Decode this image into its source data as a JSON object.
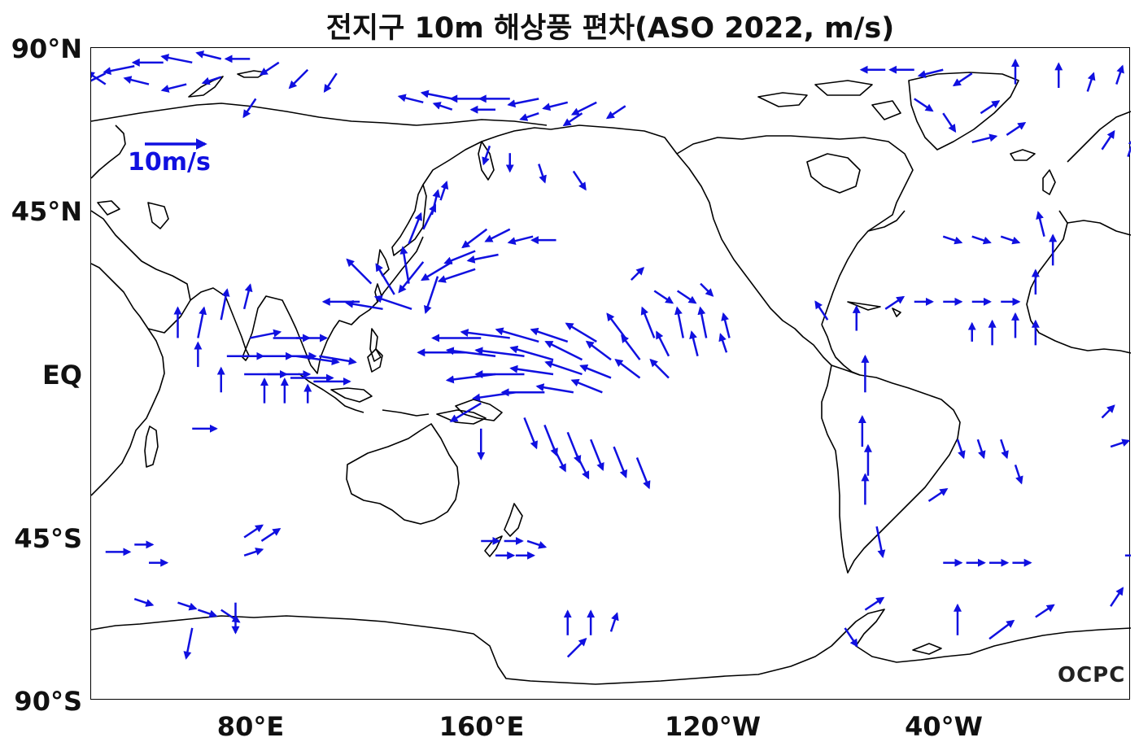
{
  "title": "전지구 10m 해상풍 편차(ASO 2022, m/s)",
  "y_axis": {
    "labels": [
      {
        "text": "90°N",
        "lat": 90
      },
      {
        "text": "45°N",
        "lat": 45
      },
      {
        "text": "EQ",
        "lat": 0
      },
      {
        "text": "45°S",
        "lat": -45
      },
      {
        "text": "90°S",
        "lat": -90
      }
    ]
  },
  "x_axis": {
    "labels": [
      {
        "text": "80°E",
        "lon": 80
      },
      {
        "text": "160°E",
        "lon": 160
      },
      {
        "text": "120°W",
        "lon": 240
      },
      {
        "text": "40°W",
        "lon": 320
      }
    ]
  },
  "map": {
    "lon_range": [
      25,
      385
    ],
    "lat_range": [
      -90,
      90
    ],
    "land_outline_color": "#000000",
    "vector_color": "#1010e0"
  },
  "reference_vector": {
    "label": "10m/s",
    "speed": 10
  },
  "logo": "OCPC",
  "wind_anomaly_vectors": [
    {
      "lon": 30,
      "lat": 83,
      "u": -4,
      "v": -2
    },
    {
      "lon": 40,
      "lat": 85,
      "u": -5,
      "v": -1
    },
    {
      "lon": 50,
      "lat": 86,
      "u": -5,
      "v": 0
    },
    {
      "lon": 60,
      "lat": 86,
      "u": -5,
      "v": 1
    },
    {
      "lon": 70,
      "lat": 87,
      "u": -4,
      "v": 1
    },
    {
      "lon": 80,
      "lat": 87,
      "u": -4,
      "v": 0
    },
    {
      "lon": 90,
      "lat": 86,
      "u": -3,
      "v": -2
    },
    {
      "lon": 100,
      "lat": 84,
      "u": -3,
      "v": -3
    },
    {
      "lon": 110,
      "lat": 83,
      "u": -2,
      "v": -3
    },
    {
      "lon": 30,
      "lat": 80,
      "u": -3,
      "v": 2
    },
    {
      "lon": 45,
      "lat": 80,
      "u": -4,
      "v": 1
    },
    {
      "lon": 58,
      "lat": 80,
      "u": -4,
      "v": -1
    },
    {
      "lon": 70,
      "lat": 82,
      "u": -3,
      "v": -1
    },
    {
      "lon": 82,
      "lat": 76,
      "u": -2,
      "v": -3
    },
    {
      "lon": 140,
      "lat": 75,
      "u": -4,
      "v": 1
    },
    {
      "lon": 150,
      "lat": 76,
      "u": -5,
      "v": 1
    },
    {
      "lon": 160,
      "lat": 76,
      "u": -5,
      "v": 0
    },
    {
      "lon": 170,
      "lat": 76,
      "u": -5,
      "v": 0
    },
    {
      "lon": 180,
      "lat": 76,
      "u": -5,
      "v": -1
    },
    {
      "lon": 190,
      "lat": 75,
      "u": -4,
      "v": -1
    },
    {
      "lon": 200,
      "lat": 75,
      "u": -4,
      "v": -2
    },
    {
      "lon": 210,
      "lat": 74,
      "u": -3,
      "v": -2
    },
    {
      "lon": 150,
      "lat": 73,
      "u": -3,
      "v": 1
    },
    {
      "lon": 165,
      "lat": 73,
      "u": -4,
      "v": 0
    },
    {
      "lon": 180,
      "lat": 72,
      "u": -3,
      "v": -1
    },
    {
      "lon": 195,
      "lat": 72,
      "u": -3,
      "v": -2
    },
    {
      "lon": 163,
      "lat": 63,
      "u": -1,
      "v": -3
    },
    {
      "lon": 170,
      "lat": 61,
      "u": 0,
      "v": -3
    },
    {
      "lon": 180,
      "lat": 58,
      "u": 1,
      "v": -3
    },
    {
      "lon": 192,
      "lat": 56,
      "u": 2,
      "v": -3
    },
    {
      "lon": 300,
      "lat": 84,
      "u": -4,
      "v": 0
    },
    {
      "lon": 310,
      "lat": 84,
      "u": -4,
      "v": 0
    },
    {
      "lon": 320,
      "lat": 84,
      "u": -4,
      "v": -1
    },
    {
      "lon": 330,
      "lat": 83,
      "u": -3,
      "v": -2
    },
    {
      "lon": 310,
      "lat": 76,
      "u": 3,
      "v": -2
    },
    {
      "lon": 320,
      "lat": 72,
      "u": 2,
      "v": -3
    },
    {
      "lon": 333,
      "lat": 72,
      "u": 3,
      "v": 2
    },
    {
      "lon": 342,
      "lat": 66,
      "u": 3,
      "v": 2
    },
    {
      "lon": 330,
      "lat": 64,
      "u": 4,
      "v": 1
    },
    {
      "lon": 345,
      "lat": 80,
      "u": 0,
      "v": 4
    },
    {
      "lon": 360,
      "lat": 79,
      "u": 0,
      "v": 4
    },
    {
      "lon": 370,
      "lat": 78,
      "u": 1,
      "v": 3
    },
    {
      "lon": 380,
      "lat": 80,
      "u": 1,
      "v": 3
    },
    {
      "lon": 375,
      "lat": 62,
      "u": 2,
      "v": 3
    },
    {
      "lon": 384,
      "lat": 60,
      "u": 1,
      "v": 3
    },
    {
      "lon": 162,
      "lat": 40,
      "u": -4,
      "v": -3
    },
    {
      "lon": 170,
      "lat": 40,
      "u": -4,
      "v": -2
    },
    {
      "lon": 178,
      "lat": 38,
      "u": -4,
      "v": -1
    },
    {
      "lon": 186,
      "lat": 37,
      "u": -4,
      "v": 0
    },
    {
      "lon": 158,
      "lat": 34,
      "u": -5,
      "v": -2
    },
    {
      "lon": 166,
      "lat": 33,
      "u": -5,
      "v": -1
    },
    {
      "lon": 150,
      "lat": 31,
      "u": -5,
      "v": -3
    },
    {
      "lon": 158,
      "lat": 29,
      "u": -6,
      "v": -2
    },
    {
      "lon": 140,
      "lat": 31,
      "u": -4,
      "v": -5
    },
    {
      "lon": 145,
      "lat": 27,
      "u": -2,
      "v": -6
    },
    {
      "lon": 135,
      "lat": 36,
      "u": 2,
      "v": 5
    },
    {
      "lon": 140,
      "lat": 40,
      "u": 2,
      "v": 4
    },
    {
      "lon": 143,
      "lat": 44,
      "u": 1,
      "v": 4
    },
    {
      "lon": 146,
      "lat": 48,
      "u": 1,
      "v": 3
    },
    {
      "lon": 135,
      "lat": 25,
      "u": -1,
      "v": 6
    },
    {
      "lon": 130,
      "lat": 22,
      "u": -3,
      "v": 5
    },
    {
      "lon": 122,
      "lat": 25,
      "u": -4,
      "v": 4
    },
    {
      "lon": 118,
      "lat": 20,
      "u": -6,
      "v": 0
    },
    {
      "lon": 126,
      "lat": 18,
      "u": -6,
      "v": 1
    },
    {
      "lon": 136,
      "lat": 18,
      "u": -6,
      "v": 2
    },
    {
      "lon": 220,
      "lat": 23,
      "u": 3,
      "v": -2
    },
    {
      "lon": 228,
      "lat": 23,
      "u": 3,
      "v": -2
    },
    {
      "lon": 236,
      "lat": 25,
      "u": 2,
      "v": -2
    },
    {
      "lon": 212,
      "lat": 26,
      "u": 2,
      "v": 2
    },
    {
      "lon": 160,
      "lat": 10,
      "u": -8,
      "v": 0
    },
    {
      "lon": 170,
      "lat": 10,
      "u": -8,
      "v": 1
    },
    {
      "lon": 180,
      "lat": 9,
      "u": -7,
      "v": 2
    },
    {
      "lon": 190,
      "lat": 9,
      "u": -6,
      "v": 2
    },
    {
      "lon": 200,
      "lat": 9,
      "u": -5,
      "v": 3
    },
    {
      "lon": 210,
      "lat": 10,
      "u": -3,
      "v": 4
    },
    {
      "lon": 220,
      "lat": 10,
      "u": -2,
      "v": 5
    },
    {
      "lon": 230,
      "lat": 10,
      "u": -1,
      "v": 5
    },
    {
      "lon": 238,
      "lat": 10,
      "u": -1,
      "v": 5
    },
    {
      "lon": 246,
      "lat": 10,
      "u": -1,
      "v": 4
    },
    {
      "lon": 155,
      "lat": 6,
      "u": -8,
      "v": 0
    },
    {
      "lon": 165,
      "lat": 5,
      "u": -8,
      "v": 1
    },
    {
      "lon": 175,
      "lat": 5,
      "u": -8,
      "v": 1
    },
    {
      "lon": 185,
      "lat": 4,
      "u": -7,
      "v": 2
    },
    {
      "lon": 195,
      "lat": 4,
      "u": -6,
      "v": 3
    },
    {
      "lon": 205,
      "lat": 4,
      "u": -4,
      "v": 3
    },
    {
      "lon": 215,
      "lat": 4,
      "u": -3,
      "v": 4
    },
    {
      "lon": 225,
      "lat": 5,
      "u": -2,
      "v": 4
    },
    {
      "lon": 235,
      "lat": 5,
      "u": -1,
      "v": 4
    },
    {
      "lon": 245,
      "lat": 6,
      "u": -1,
      "v": 3
    },
    {
      "lon": 165,
      "lat": 0,
      "u": -8,
      "v": -1
    },
    {
      "lon": 175,
      "lat": 0,
      "u": -8,
      "v": 0
    },
    {
      "lon": 185,
      "lat": 0,
      "u": -7,
      "v": 1
    },
    {
      "lon": 195,
      "lat": 0,
      "u": -6,
      "v": 2
    },
    {
      "lon": 205,
      "lat": -1,
      "u": -5,
      "v": 2
    },
    {
      "lon": 215,
      "lat": -1,
      "u": -4,
      "v": 3
    },
    {
      "lon": 225,
      "lat": -1,
      "u": -3,
      "v": 3
    },
    {
      "lon": 172,
      "lat": -5,
      "u": -7,
      "v": -1
    },
    {
      "lon": 182,
      "lat": -5,
      "u": -7,
      "v": 0
    },
    {
      "lon": 192,
      "lat": -5,
      "u": -6,
      "v": 1
    },
    {
      "lon": 202,
      "lat": -5,
      "u": -5,
      "v": 2
    },
    {
      "lon": 160,
      "lat": -8,
      "u": -5,
      "v": -3
    },
    {
      "lon": 175,
      "lat": -12,
      "u": 2,
      "v": -5
    },
    {
      "lon": 182,
      "lat": -14,
      "u": 2,
      "v": -5
    },
    {
      "lon": 190,
      "lat": -16,
      "u": 2,
      "v": -5
    },
    {
      "lon": 198,
      "lat": -18,
      "u": 2,
      "v": -5
    },
    {
      "lon": 206,
      "lat": -20,
      "u": 2,
      "v": -5
    },
    {
      "lon": 214,
      "lat": -23,
      "u": 2,
      "v": -5
    },
    {
      "lon": 185,
      "lat": -20,
      "u": 2,
      "v": -4
    },
    {
      "lon": 193,
      "lat": -22,
      "u": 2,
      "v": -4
    },
    {
      "lon": 160,
      "lat": -15,
      "u": 0,
      "v": -5
    },
    {
      "lon": 55,
      "lat": 10,
      "u": 0,
      "v": 5
    },
    {
      "lon": 62,
      "lat": 10,
      "u": 1,
      "v": 5
    },
    {
      "lon": 70,
      "lat": 15,
      "u": 1,
      "v": 5
    },
    {
      "lon": 78,
      "lat": 18,
      "u": 1,
      "v": 4
    },
    {
      "lon": 62,
      "lat": 2,
      "u": 0,
      "v": 4
    },
    {
      "lon": 72,
      "lat": 5,
      "u": 6,
      "v": 0
    },
    {
      "lon": 80,
      "lat": 5,
      "u": 7,
      "v": 0
    },
    {
      "lon": 88,
      "lat": 5,
      "u": 7,
      "v": 0
    },
    {
      "lon": 96,
      "lat": 5,
      "u": 7,
      "v": -1
    },
    {
      "lon": 104,
      "lat": 5,
      "u": 6,
      "v": -1
    },
    {
      "lon": 78,
      "lat": 0,
      "u": 7,
      "v": 0
    },
    {
      "lon": 86,
      "lat": 0,
      "u": 7,
      "v": 0
    },
    {
      "lon": 94,
      "lat": -1,
      "u": 7,
      "v": 0
    },
    {
      "lon": 102,
      "lat": -2,
      "u": 6,
      "v": 0
    },
    {
      "lon": 88,
      "lat": 10,
      "u": 6,
      "v": 0
    },
    {
      "lon": 96,
      "lat": 10,
      "u": 5,
      "v": 0
    },
    {
      "lon": 80,
      "lat": 10,
      "u": 5,
      "v": 1
    },
    {
      "lon": 85,
      "lat": -8,
      "u": 0,
      "v": 4
    },
    {
      "lon": 92,
      "lat": -8,
      "u": 0,
      "v": 4
    },
    {
      "lon": 100,
      "lat": -8,
      "u": 0,
      "v": 3
    },
    {
      "lon": 70,
      "lat": -5,
      "u": 0,
      "v": 4
    },
    {
      "lon": 60,
      "lat": -15,
      "u": 4,
      "v": 0
    },
    {
      "lon": 160,
      "lat": -46,
      "u": 3,
      "v": 0
    },
    {
      "lon": 168,
      "lat": -46,
      "u": 3,
      "v": 0
    },
    {
      "lon": 176,
      "lat": -46,
      "u": 3,
      "v": -1
    },
    {
      "lon": 165,
      "lat": -50,
      "u": 3,
      "v": 0
    },
    {
      "lon": 172,
      "lat": -50,
      "u": 3,
      "v": 0
    },
    {
      "lon": 78,
      "lat": -45,
      "u": 3,
      "v": 2
    },
    {
      "lon": 84,
      "lat": -46,
      "u": 3,
      "v": 2
    },
    {
      "lon": 78,
      "lat": -50,
      "u": 3,
      "v": 1
    },
    {
      "lon": 30,
      "lat": -49,
      "u": 4,
      "v": 0
    },
    {
      "lon": 40,
      "lat": -47,
      "u": 3,
      "v": 0
    },
    {
      "lon": 45,
      "lat": -52,
      "u": 3,
      "v": 0
    },
    {
      "lon": 320,
      "lat": -52,
      "u": 3,
      "v": 0
    },
    {
      "lon": 328,
      "lat": -52,
      "u": 3,
      "v": 0
    },
    {
      "lon": 336,
      "lat": -52,
      "u": 3,
      "v": 0
    },
    {
      "lon": 344,
      "lat": -52,
      "u": 3,
      "v": 0
    },
    {
      "lon": 383,
      "lat": -50,
      "u": 3,
      "v": 0
    },
    {
      "lon": 40,
      "lat": -62,
      "u": 3,
      "v": -1
    },
    {
      "lon": 55,
      "lat": -63,
      "u": 3,
      "v": -1
    },
    {
      "lon": 62,
      "lat": -65,
      "u": 3,
      "v": -1
    },
    {
      "lon": 70,
      "lat": -65,
      "u": 3,
      "v": -2
    },
    {
      "lon": 75,
      "lat": -63,
      "u": 0,
      "v": -5
    },
    {
      "lon": 60,
      "lat": -70,
      "u": -1,
      "v": -5
    },
    {
      "lon": 190,
      "lat": -72,
      "u": 0,
      "v": 4
    },
    {
      "lon": 198,
      "lat": -72,
      "u": 0,
      "v": 4
    },
    {
      "lon": 205,
      "lat": -71,
      "u": 1,
      "v": 3
    },
    {
      "lon": 190,
      "lat": -78,
      "u": 3,
      "v": 3
    },
    {
      "lon": 286,
      "lat": -70,
      "u": 2,
      "v": -3
    },
    {
      "lon": 293,
      "lat": -65,
      "u": 3,
      "v": 2
    },
    {
      "lon": 325,
      "lat": -72,
      "u": 0,
      "v": 5
    },
    {
      "lon": 336,
      "lat": -73,
      "u": 4,
      "v": 3
    },
    {
      "lon": 352,
      "lat": -67,
      "u": 3,
      "v": 2
    },
    {
      "lon": 378,
      "lat": -64,
      "u": 2,
      "v": 3
    },
    {
      "lon": 292,
      "lat": -20,
      "u": 0,
      "v": 5
    },
    {
      "lon": 294,
      "lat": -28,
      "u": 0,
      "v": 5
    },
    {
      "lon": 293,
      "lat": -36,
      "u": 0,
      "v": 5
    },
    {
      "lon": 297,
      "lat": -42,
      "u": 1,
      "v": -5
    },
    {
      "lon": 293,
      "lat": -5,
      "u": 0,
      "v": 6
    },
    {
      "lon": 315,
      "lat": -35,
      "u": 3,
      "v": 2
    },
    {
      "lon": 290,
      "lat": 12,
      "u": 0,
      "v": 4
    },
    {
      "lon": 280,
      "lat": 15,
      "u": -2,
      "v": 3
    },
    {
      "lon": 300,
      "lat": 18,
      "u": 3,
      "v": 2
    },
    {
      "lon": 310,
      "lat": 20,
      "u": 3,
      "v": 0
    },
    {
      "lon": 320,
      "lat": 20,
      "u": 3,
      "v": 0
    },
    {
      "lon": 330,
      "lat": 20,
      "u": 3,
      "v": 0
    },
    {
      "lon": 340,
      "lat": 20,
      "u": 3,
      "v": 0
    },
    {
      "lon": 320,
      "lat": 38,
      "u": 3,
      "v": -1
    },
    {
      "lon": 330,
      "lat": 38,
      "u": 3,
      "v": -1
    },
    {
      "lon": 340,
      "lat": 38,
      "u": 3,
      "v": -1
    },
    {
      "lon": 355,
      "lat": 38,
      "u": -1,
      "v": 4
    },
    {
      "lon": 358,
      "lat": 30,
      "u": 0,
      "v": 5
    },
    {
      "lon": 352,
      "lat": 22,
      "u": 0,
      "v": 4
    },
    {
      "lon": 345,
      "lat": 10,
      "u": 0,
      "v": 4
    },
    {
      "lon": 352,
      "lat": 8,
      "u": 0,
      "v": 4
    },
    {
      "lon": 337,
      "lat": 8,
      "u": 0,
      "v": 4
    },
    {
      "lon": 330,
      "lat": 9,
      "u": 0,
      "v": 3
    },
    {
      "lon": 325,
      "lat": -18,
      "u": 1,
      "v": -3
    },
    {
      "lon": 332,
      "lat": -18,
      "u": 1,
      "v": -3
    },
    {
      "lon": 340,
      "lat": -18,
      "u": 1,
      "v": -3
    },
    {
      "lon": 345,
      "lat": -25,
      "u": 1,
      "v": -3
    },
    {
      "lon": 378,
      "lat": -20,
      "u": 3,
      "v": 1
    },
    {
      "lon": 375,
      "lat": -12,
      "u": 2,
      "v": 2
    }
  ]
}
